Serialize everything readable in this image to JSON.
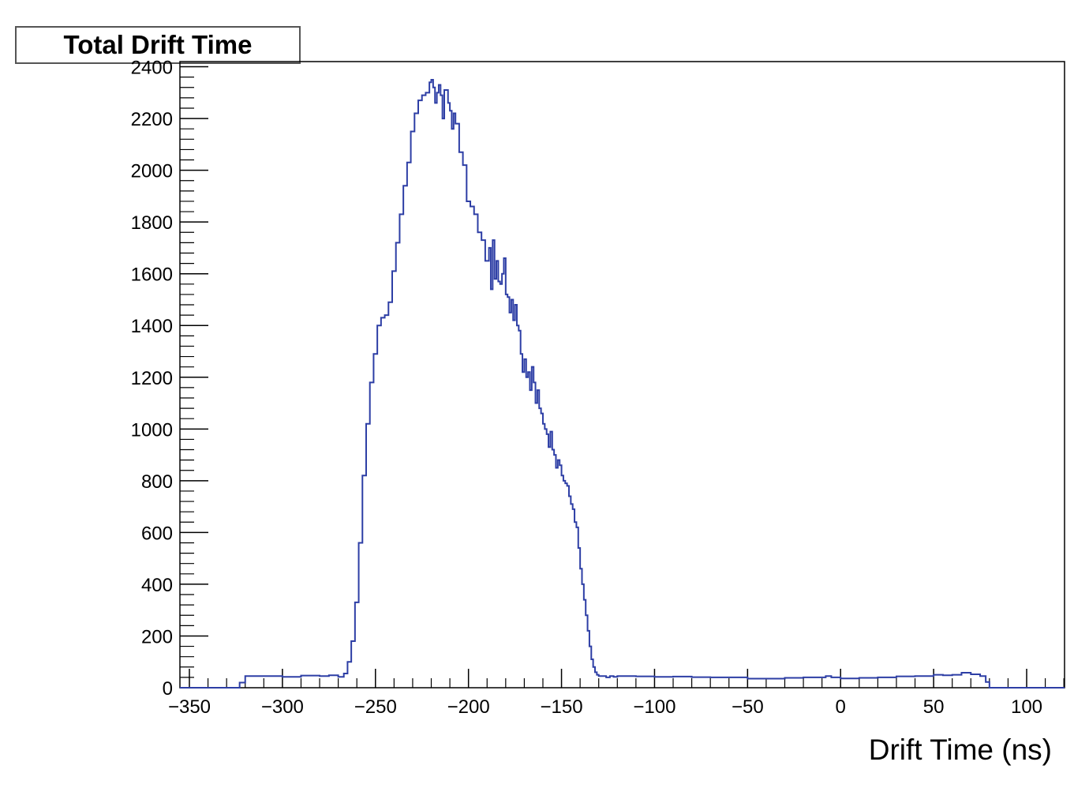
{
  "chart_data": {
    "type": "line",
    "subtype": "step-histogram",
    "title": "Total Drift Time",
    "xlabel": "Drift Time (ns)",
    "ylabel": "",
    "xlim": [
      -350,
      120
    ],
    "ylim": [
      0,
      2420
    ],
    "x_ticks": [
      -350,
      -300,
      -250,
      -200,
      -150,
      -100,
      -50,
      0,
      50,
      100
    ],
    "x_tick_labels": [
      "−350",
      "−300",
      "−250",
      "−200",
      "−150",
      "−100",
      "−50",
      "0",
      "50",
      "100"
    ],
    "y_ticks": [
      0,
      200,
      400,
      600,
      800,
      1000,
      1200,
      1400,
      1600,
      1800,
      2000,
      2200,
      2400
    ],
    "y_tick_labels": [
      "0",
      "200",
      "400",
      "600",
      "800",
      "1000",
      "1200",
      "1400",
      "1600",
      "1800",
      "2000",
      "2200",
      "2400"
    ],
    "grid": false,
    "legend": "none",
    "line_color": "#2d3ea5",
    "series": [
      {
        "values_x": [
          -350,
          -325,
          -323,
          -320,
          -310,
          -300,
          -290,
          -280,
          -275,
          -270,
          -267,
          -265,
          -263,
          -261,
          -259,
          -257,
          -255,
          -253,
          -251,
          -249,
          -247,
          -245,
          -243,
          -241,
          -239,
          -237,
          -235,
          -233,
          -231,
          -229,
          -227,
          -225,
          -223,
          -221,
          -220,
          -219,
          -218,
          -217,
          -216,
          -215,
          -214,
          -213,
          -212,
          -211,
          -210,
          -209,
          -208,
          -207,
          -205,
          -203,
          -201,
          -199,
          -197,
          -195,
          -193,
          -191,
          -189,
          -188,
          -187,
          -186,
          -185,
          -184,
          -183,
          -182,
          -181,
          -180,
          -179,
          -178,
          -177,
          -176,
          -175,
          -174,
          -173,
          -172,
          -171,
          -170,
          -169,
          -168,
          -167,
          -166,
          -165,
          -164,
          -163,
          -162,
          -161,
          -160,
          -159,
          -158,
          -157,
          -156,
          -155,
          -154,
          -153,
          -152,
          -151,
          -150,
          -149,
          -148,
          -147,
          -146,
          -145,
          -144,
          -143,
          -142,
          -141,
          -140,
          -139,
          -138,
          -137,
          -136,
          -135,
          -134,
          -133,
          -132,
          -131,
          -130,
          -129,
          -128,
          -126,
          -124,
          -122,
          -120,
          -110,
          -100,
          -90,
          -80,
          -70,
          -60,
          -50,
          -40,
          -30,
          -20,
          -10,
          -8,
          -5,
          0,
          10,
          20,
          30,
          40,
          45,
          50,
          55,
          60,
          65,
          70,
          75,
          78,
          80,
          90,
          100,
          110,
          120
        ],
        "values_y": [
          0,
          0,
          20,
          45,
          45,
          42,
          47,
          45,
          48,
          42,
          55,
          100,
          180,
          330,
          560,
          820,
          1020,
          1180,
          1290,
          1400,
          1430,
          1440,
          1490,
          1610,
          1720,
          1830,
          1940,
          2030,
          2150,
          2220,
          2270,
          2290,
          2300,
          2340,
          2350,
          2320,
          2260,
          2300,
          2330,
          2290,
          2200,
          2310,
          2310,
          2260,
          2230,
          2160,
          2220,
          2180,
          2070,
          2020,
          1880,
          1860,
          1830,
          1760,
          1730,
          1650,
          1700,
          1540,
          1730,
          1580,
          1650,
          1570,
          1560,
          1600,
          1660,
          1520,
          1510,
          1450,
          1500,
          1420,
          1480,
          1400,
          1380,
          1290,
          1220,
          1270,
          1200,
          1220,
          1150,
          1240,
          1180,
          1100,
          1150,
          1080,
          1060,
          1020,
          1000,
          980,
          930,
          990,
          920,
          900,
          850,
          880,
          860,
          820,
          800,
          790,
          780,
          740,
          710,
          690,
          640,
          620,
          540,
          460,
          400,
          340,
          280,
          220,
          160,
          110,
          80,
          60,
          50,
          45,
          45,
          45,
          40,
          45,
          42,
          45,
          44,
          42,
          43,
          41,
          40,
          40,
          35,
          35,
          38,
          40,
          40,
          45,
          40,
          36,
          38,
          40,
          44,
          45,
          45,
          50,
          48,
          50,
          58,
          52,
          45,
          22,
          0,
          0,
          0,
          0,
          0
        ]
      }
    ]
  }
}
